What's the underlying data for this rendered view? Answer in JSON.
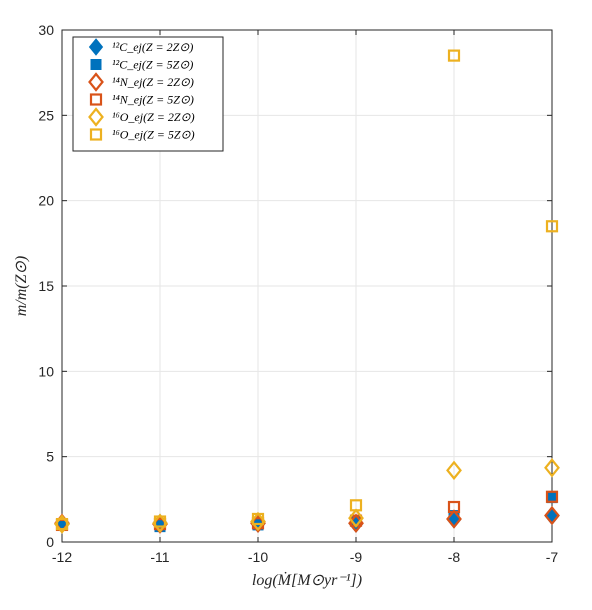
{
  "chart_data": {
    "type": "scatter",
    "title": "",
    "xlabel": "log(Ṁ[M⊙yr⁻¹])",
    "ylabel": "m/m(Z⊙)",
    "xlim": [
      -12,
      -7
    ],
    "ylim": [
      0,
      30
    ],
    "x_ticks": [
      "-12",
      "-11",
      "-10",
      "-9",
      "-8",
      "-7"
    ],
    "y_ticks": [
      "0",
      "5",
      "10",
      "15",
      "20",
      "25",
      "30"
    ],
    "grid": true,
    "legend_position": "top-left",
    "series": [
      {
        "name": "¹²C_ej(Z = 2Z⊙)",
        "marker": "diamond-filled",
        "color": "#0072BD",
        "x": [
          -12,
          -11,
          -10,
          -9,
          -8,
          -7
        ],
        "y": [
          1.1,
          1.15,
          1.05,
          1.05,
          1.3,
          1.5
        ]
      },
      {
        "name": "¹²C_ej(Z = 5Z⊙)",
        "marker": "square-filled",
        "color": "#0072BD",
        "x": [
          -12,
          -11,
          -10,
          -9,
          -8,
          -7
        ],
        "y": [
          1.0,
          0.9,
          1.0,
          1.25,
          1.55,
          2.6
        ]
      },
      {
        "name": "¹⁴N_ej(Z = 2Z⊙)",
        "marker": "diamond-open",
        "color": "#D95319",
        "x": [
          -12,
          -11,
          -10,
          -9,
          -8,
          -7
        ],
        "y": [
          1.1,
          1.05,
          1.1,
          1.1,
          1.35,
          1.55
        ]
      },
      {
        "name": "¹⁴N_ej(Z = 5Z⊙)",
        "marker": "square-open",
        "color": "#D95319",
        "x": [
          -12,
          -11,
          -10,
          -9,
          -8,
          -7
        ],
        "y": [
          1.0,
          1.05,
          1.1,
          1.25,
          2.05,
          2.65
        ]
      },
      {
        "name": "¹⁶O_ej(Z = 2Z⊙)",
        "marker": "diamond-open",
        "color": "#EDB120",
        "x": [
          -12,
          -11,
          -10,
          -9,
          -8,
          -7
        ],
        "y": [
          1.05,
          1.1,
          1.2,
          1.4,
          4.2,
          4.35
        ]
      },
      {
        "name": "¹⁶O_ej(Z = 5Z⊙)",
        "marker": "square-open",
        "color": "#EDB120",
        "x": [
          -12,
          -11,
          -10,
          -9,
          -8,
          -7
        ],
        "y": [
          1.05,
          1.2,
          1.35,
          2.15,
          28.5,
          18.5
        ]
      }
    ]
  }
}
